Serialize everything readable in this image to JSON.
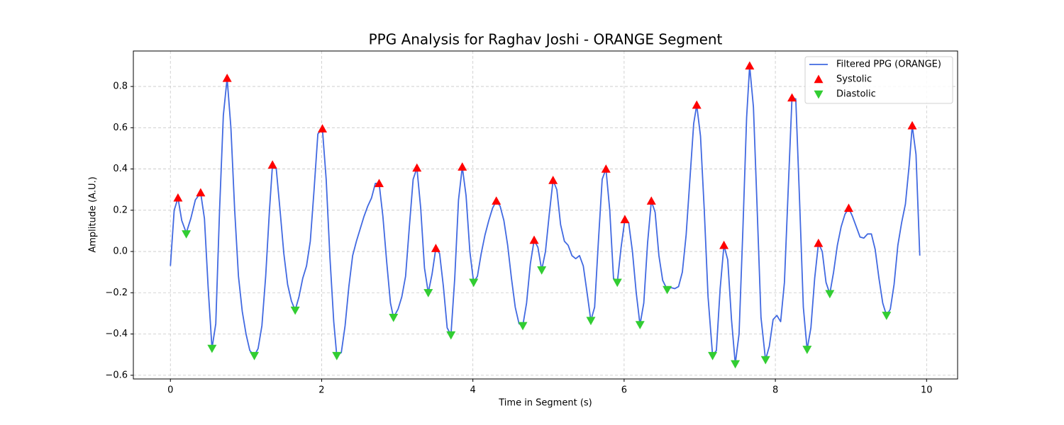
{
  "chart_data": {
    "type": "line",
    "title": "PPG Analysis for Raghav Joshi - ORANGE Segment",
    "xlabel": "Time in Segment (s)",
    "ylabel": "Amplitude (A.U.)",
    "xlim": [
      -0.49,
      10.41
    ],
    "ylim": [
      -0.618,
      0.972
    ],
    "xticks": [
      0,
      2,
      4,
      6,
      8,
      10
    ],
    "yticks": [
      {
        "value": -0.6,
        "label": "−0.6"
      },
      {
        "value": -0.4,
        "label": "−0.4"
      },
      {
        "value": -0.2,
        "label": "−0.2"
      },
      {
        "value": 0,
        "label": "0.0"
      },
      0.2,
      0.4,
      0.6,
      0.8
    ],
    "grid": true,
    "legend": "upper right",
    "series": [
      {
        "name": "Filtered PPG (ORANGE)",
        "color": "#4169e1",
        "marker": "line",
        "x": [
          0.0,
          0.05,
          0.1,
          0.15,
          0.21,
          0.27,
          0.33,
          0.4,
          0.45,
          0.5,
          0.55,
          0.6,
          0.65,
          0.7,
          0.75,
          0.8,
          0.85,
          0.9,
          0.95,
          1.0,
          1.05,
          1.11,
          1.16,
          1.21,
          1.26,
          1.31,
          1.35,
          1.4,
          1.45,
          1.5,
          1.55,
          1.6,
          1.65,
          1.7,
          1.75,
          1.8,
          1.85,
          1.9,
          1.95,
          2.01,
          2.06,
          2.11,
          2.16,
          2.2,
          2.26,
          2.31,
          2.36,
          2.41,
          2.46,
          2.51,
          2.56,
          2.61,
          2.66,
          2.71,
          2.76,
          2.81,
          2.86,
          2.91,
          2.95,
          3.01,
          3.06,
          3.11,
          3.16,
          3.21,
          3.26,
          3.31,
          3.36,
          3.41,
          3.46,
          3.51,
          3.56,
          3.61,
          3.66,
          3.71,
          3.76,
          3.81,
          3.86,
          3.91,
          3.96,
          4.01,
          4.06,
          4.11,
          4.16,
          4.21,
          4.26,
          4.31,
          4.36,
          4.41,
          4.46,
          4.51,
          4.56,
          4.61,
          4.66,
          4.71,
          4.76,
          4.81,
          4.86,
          4.91,
          4.96,
          5.01,
          5.06,
          5.11,
          5.16,
          5.21,
          5.26,
          5.31,
          5.36,
          5.41,
          5.46,
          5.51,
          5.56,
          5.61,
          5.66,
          5.71,
          5.76,
          5.81,
          5.86,
          5.91,
          5.96,
          6.01,
          6.06,
          6.11,
          6.16,
          6.21,
          6.26,
          6.31,
          6.36,
          6.41,
          6.46,
          6.51,
          6.57,
          6.62,
          6.67,
          6.72,
          6.77,
          6.82,
          6.87,
          6.92,
          6.96,
          7.01,
          7.06,
          7.11,
          7.17,
          7.22,
          7.27,
          7.32,
          7.37,
          7.42,
          7.47,
          7.52,
          7.57,
          7.62,
          7.66,
          7.71,
          7.76,
          7.81,
          7.87,
          7.92,
          7.97,
          8.02,
          8.07,
          8.12,
          8.17,
          8.22,
          8.27,
          8.32,
          8.37,
          8.42,
          8.47,
          8.52,
          8.57,
          8.62,
          8.67,
          8.72,
          8.77,
          8.82,
          8.87,
          8.92,
          8.97,
          9.02,
          9.07,
          9.12,
          9.17,
          9.22,
          9.27,
          9.32,
          9.37,
          9.42,
          9.47,
          9.52,
          9.57,
          9.62,
          9.67,
          9.72,
          9.77,
          9.81,
          9.86,
          9.91
        ],
        "values": [
          -0.07,
          0.2,
          0.26,
          0.15,
          0.09,
          0.16,
          0.25,
          0.285,
          0.16,
          -0.18,
          -0.47,
          -0.35,
          0.2,
          0.66,
          0.84,
          0.6,
          0.2,
          -0.12,
          -0.29,
          -0.4,
          -0.48,
          -0.505,
          -0.47,
          -0.36,
          -0.12,
          0.2,
          0.42,
          0.4,
          0.2,
          -0.01,
          -0.16,
          -0.24,
          -0.285,
          -0.22,
          -0.13,
          -0.07,
          0.05,
          0.3,
          0.57,
          0.595,
          0.35,
          -0.03,
          -0.34,
          -0.505,
          -0.49,
          -0.36,
          -0.17,
          -0.02,
          0.05,
          0.11,
          0.17,
          0.22,
          0.26,
          0.33,
          0.33,
          0.17,
          -0.05,
          -0.25,
          -0.32,
          -0.28,
          -0.22,
          -0.12,
          0.12,
          0.35,
          0.405,
          0.21,
          -0.08,
          -0.2,
          -0.11,
          0.015,
          -0.01,
          -0.17,
          -0.37,
          -0.405,
          -0.13,
          0.25,
          0.41,
          0.27,
          0.0,
          -0.15,
          -0.12,
          -0.01,
          0.08,
          0.15,
          0.21,
          0.245,
          0.22,
          0.15,
          0.03,
          -0.13,
          -0.27,
          -0.35,
          -0.36,
          -0.25,
          -0.06,
          0.055,
          0.02,
          -0.09,
          0.0,
          0.18,
          0.345,
          0.3,
          0.13,
          0.05,
          0.03,
          -0.02,
          -0.035,
          -0.02,
          -0.07,
          -0.2,
          -0.335,
          -0.27,
          0.05,
          0.35,
          0.4,
          0.2,
          -0.13,
          -0.15,
          0.02,
          0.155,
          0.14,
          0.0,
          -0.2,
          -0.355,
          -0.25,
          0.04,
          0.245,
          0.19,
          -0.02,
          -0.14,
          -0.185,
          -0.175,
          -0.18,
          -0.17,
          -0.1,
          0.08,
          0.35,
          0.62,
          0.71,
          0.56,
          0.2,
          -0.22,
          -0.505,
          -0.48,
          -0.18,
          0.03,
          -0.04,
          -0.33,
          -0.545,
          -0.4,
          0.1,
          0.65,
          0.9,
          0.7,
          0.2,
          -0.32,
          -0.525,
          -0.46,
          -0.33,
          -0.31,
          -0.34,
          -0.15,
          0.3,
          0.745,
          0.74,
          0.25,
          -0.27,
          -0.475,
          -0.37,
          -0.13,
          0.04,
          0.0,
          -0.15,
          -0.205,
          -0.1,
          0.03,
          0.12,
          0.18,
          0.21,
          0.17,
          0.12,
          0.07,
          0.065,
          0.085,
          0.085,
          0.01,
          -0.13,
          -0.25,
          -0.31,
          -0.28,
          -0.16,
          0.03,
          0.14,
          0.23,
          0.42,
          0.61,
          0.47,
          -0.02
        ]
      },
      {
        "name": "Systolic",
        "color": "#ff0000",
        "marker": "^",
        "x": [
          0.1,
          0.4,
          0.75,
          1.35,
          2.01,
          2.76,
          3.26,
          3.51,
          3.86,
          4.31,
          4.81,
          5.06,
          5.76,
          6.01,
          6.36,
          6.96,
          7.32,
          7.66,
          8.22,
          8.57,
          8.97,
          9.81
        ],
        "values": [
          0.26,
          0.285,
          0.84,
          0.42,
          0.595,
          0.33,
          0.405,
          0.015,
          0.41,
          0.245,
          0.055,
          0.345,
          0.4,
          0.155,
          0.245,
          0.71,
          0.03,
          0.9,
          0.745,
          0.04,
          0.21,
          0.61
        ]
      },
      {
        "name": "Diastolic",
        "color": "#32cd32",
        "marker": "v",
        "x": [
          0.21,
          0.55,
          1.11,
          1.65,
          2.2,
          2.95,
          3.41,
          3.71,
          4.01,
          4.66,
          4.91,
          5.56,
          5.91,
          6.21,
          6.57,
          7.17,
          7.47,
          7.87,
          8.42,
          8.72,
          9.47
        ],
        "values": [
          0.085,
          -0.47,
          -0.505,
          -0.285,
          -0.505,
          -0.32,
          -0.2,
          -0.405,
          -0.15,
          -0.36,
          -0.09,
          -0.335,
          -0.15,
          -0.355,
          -0.185,
          -0.505,
          -0.545,
          -0.525,
          -0.475,
          -0.205,
          -0.31
        ]
      }
    ]
  }
}
